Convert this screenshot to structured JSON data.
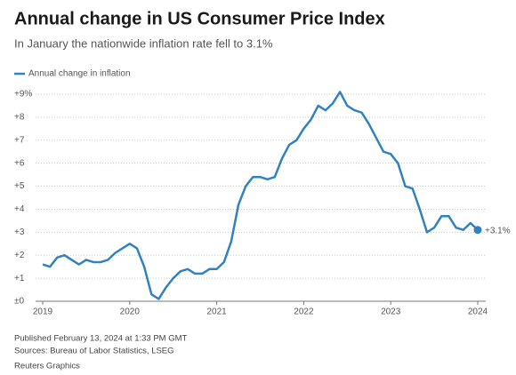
{
  "chart_data": {
    "type": "line",
    "title": "Annual change in US Consumer Price Index",
    "subtitle": "In January the nationwide inflation rate fell to 3.1%",
    "categories": [
      "2019",
      null,
      null,
      null,
      null,
      null,
      null,
      null,
      null,
      null,
      null,
      null,
      "2020",
      null,
      null,
      null,
      null,
      null,
      null,
      null,
      null,
      null,
      null,
      null,
      "2021",
      null,
      null,
      null,
      null,
      null,
      null,
      null,
      null,
      null,
      null,
      null,
      "2022",
      null,
      null,
      null,
      null,
      null,
      null,
      null,
      null,
      null,
      null,
      null,
      "2023",
      null,
      null,
      null,
      null,
      null,
      null,
      null,
      null,
      null,
      null,
      null,
      "2024"
    ],
    "series": [
      {
        "name": "Annual change in inflation",
        "color": "#3282bf",
        "values": [
          1.6,
          1.5,
          1.9,
          2.0,
          1.8,
          1.6,
          1.8,
          1.7,
          1.7,
          1.8,
          2.1,
          2.3,
          2.5,
          2.3,
          1.5,
          0.3,
          0.1,
          0.6,
          1.0,
          1.3,
          1.4,
          1.2,
          1.2,
          1.4,
          1.4,
          1.7,
          2.6,
          4.2,
          5.0,
          5.4,
          5.4,
          5.3,
          5.4,
          6.2,
          6.8,
          7.0,
          7.5,
          7.9,
          8.5,
          8.3,
          8.6,
          9.1,
          8.5,
          8.3,
          8.2,
          7.7,
          7.1,
          6.5,
          6.4,
          6.0,
          5.0,
          4.9,
          4.0,
          3.0,
          3.2,
          3.7,
          3.7,
          3.2,
          3.1,
          3.4,
          3.1
        ],
        "value_labels": [
          null,
          null,
          null,
          null,
          null,
          null,
          null,
          null,
          null,
          null,
          null,
          null,
          null,
          null,
          null,
          null,
          null,
          null,
          null,
          null,
          null,
          null,
          null,
          null,
          null,
          null,
          null,
          null,
          null,
          null,
          null,
          null,
          null,
          null,
          null,
          null,
          null,
          null,
          null,
          null,
          null,
          null,
          null,
          null,
          null,
          null,
          null,
          null,
          null,
          null,
          null,
          null,
          null,
          null,
          null,
          null,
          null,
          null,
          null,
          null,
          "+3.1%"
        ]
      }
    ],
    "ylim": [
      0,
      9
    ],
    "yticks": [
      {
        "value": 0,
        "label": "±0"
      },
      {
        "value": 1,
        "label": "+1"
      },
      {
        "value": 2,
        "label": "+2"
      },
      {
        "value": 3,
        "label": "+3"
      },
      {
        "value": 4,
        "label": "+4"
      },
      {
        "value": 5,
        "label": "+5"
      },
      {
        "value": 6,
        "label": "+6"
      },
      {
        "value": 7,
        "label": "+7"
      },
      {
        "value": 8,
        "label": "+8"
      },
      {
        "value": 9,
        "label": "+9%"
      }
    ],
    "grid": true,
    "footer": [
      "Published February 13, 2024 at 1:33 PM GMT",
      "Sources: Bureau of Labor Statistics, LSEG",
      "Reuters Graphics"
    ]
  }
}
